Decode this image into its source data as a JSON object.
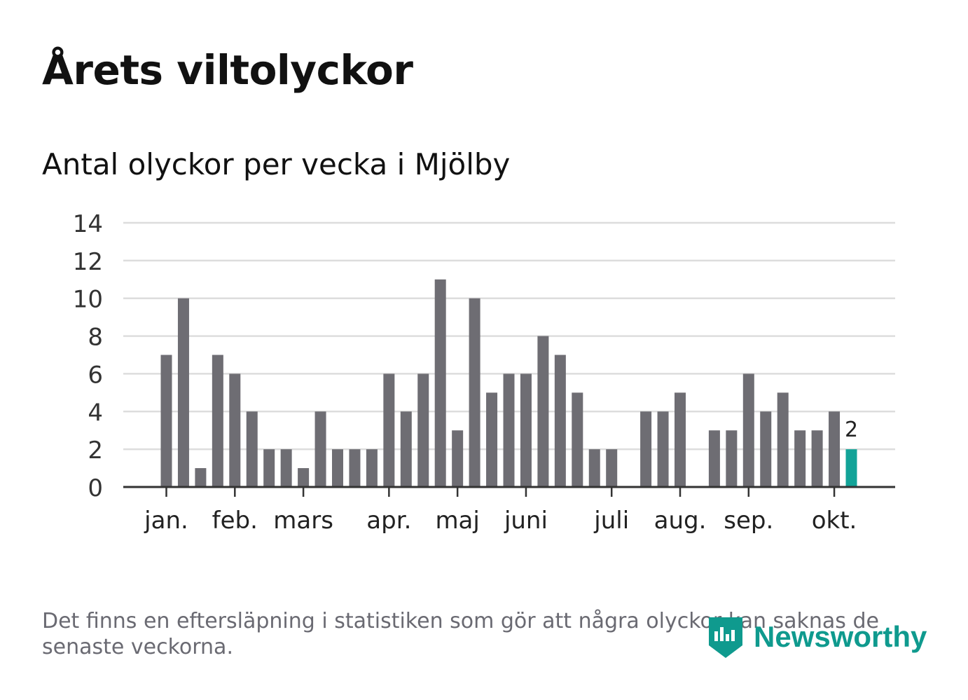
{
  "header": {
    "title": "Årets viltolyckor",
    "subtitle": "Antal olyckor per vecka i Mjölby"
  },
  "footer": {
    "note": "Det finns en eftersläpning i statistiken som gör att några olyckor kan saknas de senaste veckorna.",
    "brand": "Newsworthy"
  },
  "colors": {
    "bar": "#6e6d73",
    "highlight": "#12a398",
    "grid": "#dddddd",
    "axis": "#333333",
    "brand": "#0f9a8e"
  },
  "chart_data": {
    "type": "bar",
    "title": "Antal olyckor per vecka i Mjölby",
    "xlabel": "",
    "ylabel": "",
    "ylim": [
      0,
      14
    ],
    "yticks": [
      0,
      2,
      4,
      6,
      8,
      10,
      12,
      14
    ],
    "grid": true,
    "weeks": [
      1,
      2,
      3,
      4,
      5,
      6,
      7,
      8,
      9,
      10,
      11,
      12,
      13,
      14,
      15,
      16,
      17,
      18,
      19,
      20,
      21,
      22,
      23,
      24,
      25,
      26,
      27,
      28,
      29,
      30,
      31,
      32,
      33,
      34,
      35,
      36,
      37,
      38,
      39,
      40,
      41
    ],
    "values": [
      7,
      10,
      1,
      7,
      6,
      4,
      2,
      2,
      1,
      4,
      2,
      2,
      2,
      6,
      4,
      6,
      11,
      3,
      10,
      5,
      6,
      6,
      8,
      7,
      5,
      2,
      2,
      0,
      4,
      4,
      5,
      0,
      3,
      3,
      6,
      4,
      5,
      3,
      3,
      4,
      2
    ],
    "highlight_index": 40,
    "highlight_label": "2",
    "month_ticks": [
      {
        "label": "jan.",
        "week": 1
      },
      {
        "label": "feb.",
        "week": 5
      },
      {
        "label": "mars",
        "week": 9
      },
      {
        "label": "apr.",
        "week": 14
      },
      {
        "label": "maj",
        "week": 18
      },
      {
        "label": "juni",
        "week": 22
      },
      {
        "label": "juli",
        "week": 27
      },
      {
        "label": "aug.",
        "week": 31
      },
      {
        "label": "sep.",
        "week": 35
      },
      {
        "label": "okt.",
        "week": 40
      }
    ]
  }
}
